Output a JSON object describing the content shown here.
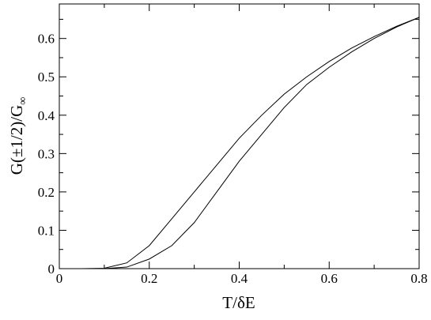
{
  "chart_data": {
    "type": "line",
    "xlabel": "T/δE",
    "ylabel": "G(±1/2)/G",
    "ylabel_subscript": "∞",
    "x": [
      0,
      0.05,
      0.1,
      0.15,
      0.2,
      0.25,
      0.3,
      0.35,
      0.4,
      0.45,
      0.5,
      0.55,
      0.6,
      0.65,
      0.7,
      0.75,
      0.8
    ],
    "series": [
      {
        "color": "#000000",
        "values": [
          0,
          0,
          0.001,
          0.015,
          0.06,
          0.13,
          0.2,
          0.27,
          0.34,
          0.4,
          0.455,
          0.5,
          0.54,
          0.575,
          0.605,
          0.632,
          0.655
        ]
      },
      {
        "color": "#000000",
        "values": [
          0,
          0,
          0,
          0.004,
          0.025,
          0.06,
          0.12,
          0.2,
          0.28,
          0.35,
          0.42,
          0.48,
          0.525,
          0.565,
          0.6,
          0.63,
          0.655
        ]
      }
    ],
    "xlim": [
      0,
      0.8
    ],
    "ylim": [
      0,
      0.69
    ],
    "xticks": [
      0,
      0.2,
      0.4,
      0.6,
      0.8
    ],
    "yticks": [
      0,
      0.1,
      0.2,
      0.3,
      0.4,
      0.5,
      0.6
    ],
    "xminorticks": [
      0.1,
      0.3,
      0.5,
      0.7
    ],
    "yminorticks": [
      0.05,
      0.15,
      0.25,
      0.35,
      0.45,
      0.55,
      0.65
    ],
    "grid": false
  }
}
